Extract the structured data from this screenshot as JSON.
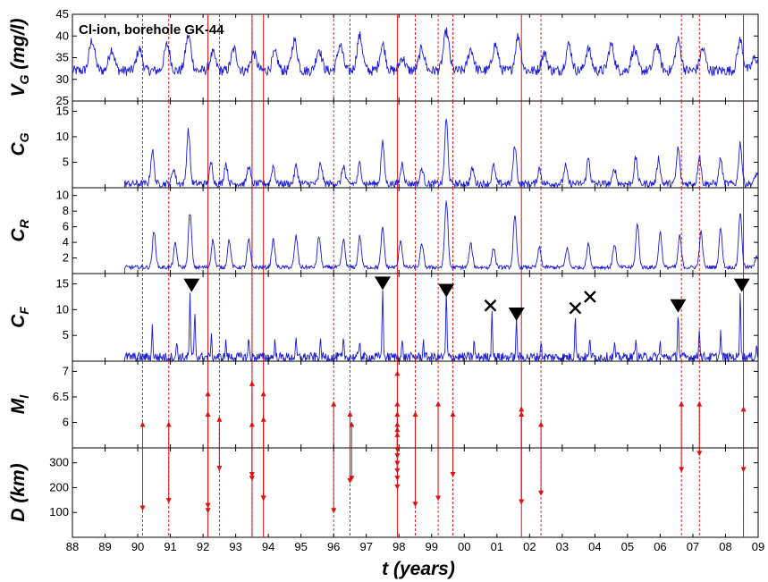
{
  "chart_data": {
    "type": "line",
    "title": "Cl-ion, borehole GK-44",
    "xlabel": "t (years)",
    "x_tick_labels": [
      "88",
      "89",
      "90",
      "91",
      "92",
      "93",
      "94",
      "95",
      "96",
      "97",
      "98",
      "99",
      "00",
      "01",
      "02",
      "03",
      "04",
      "05",
      "06",
      "07",
      "08",
      "09"
    ],
    "xlim": [
      1988,
      2009
    ],
    "colors": {
      "series": "#1a1adb",
      "events": "#e01010",
      "markers": "#000000"
    },
    "grid": false,
    "solid_event_years": [
      1992.15,
      1993.5,
      1993.85,
      1997.95,
      2001.75,
      2008.55
    ],
    "dashed_event_years": [
      1990.15,
      1990.95,
      1992.5,
      1993.5,
      1996.0,
      1996.5,
      1998.5,
      1999.2,
      1999.65,
      2002.35,
      2006.65,
      2007.2,
      2008.55
    ],
    "panels": [
      {
        "id": "vg",
        "ylabel": "V",
        "ylabel_sub": "G",
        "ylabel_unit": " (mg/l)",
        "ylim": [
          25,
          45
        ],
        "yticks": [
          "45",
          "40",
          "35",
          "30",
          "25"
        ],
        "ytick_values": [
          45,
          40,
          35,
          30,
          25
        ],
        "baseline": 32,
        "noise": 1.2,
        "start_year": 1988.0,
        "peaks": [
          [
            1988.6,
            7
          ],
          [
            1989.2,
            5
          ],
          [
            1990.05,
            5
          ],
          [
            1990.9,
            6
          ],
          [
            1991.55,
            8
          ],
          [
            1992.3,
            4
          ],
          [
            1992.95,
            5
          ],
          [
            1993.55,
            4
          ],
          [
            1994.2,
            4
          ],
          [
            1994.8,
            7
          ],
          [
            1995.55,
            5
          ],
          [
            1996.2,
            6
          ],
          [
            1996.8,
            8
          ],
          [
            1997.5,
            6
          ],
          [
            1998.1,
            3
          ],
          [
            1998.7,
            5
          ],
          [
            1999.45,
            9
          ],
          [
            2000.2,
            5
          ],
          [
            2000.95,
            6
          ],
          [
            2001.65,
            8
          ],
          [
            2002.45,
            4
          ],
          [
            2003.2,
            6
          ],
          [
            2003.8,
            5
          ],
          [
            2004.5,
            6
          ],
          [
            2005.2,
            5
          ],
          [
            2005.9,
            6
          ],
          [
            2006.55,
            7
          ],
          [
            2007.3,
            5
          ],
          [
            2008.45,
            7
          ],
          [
            2008.9,
            3
          ]
        ]
      },
      {
        "id": "cg",
        "ylabel": "C",
        "ylabel_sub": "G",
        "ylabel_unit": "",
        "ylim": [
          0,
          17
        ],
        "yticks": [
          "15",
          "10",
          "5"
        ],
        "ytick_values": [
          15,
          10,
          5
        ],
        "baseline": 0.8,
        "noise": 0.7,
        "start_year": 1989.6,
        "peaks": [
          [
            1990.45,
            6.5
          ],
          [
            1991.1,
            3
          ],
          [
            1991.55,
            10.5
          ],
          [
            1992.25,
            4
          ],
          [
            1992.7,
            4
          ],
          [
            1993.4,
            3.5
          ],
          [
            1994.15,
            3.5
          ],
          [
            1994.85,
            3.5
          ],
          [
            1995.6,
            4
          ],
          [
            1996.3,
            3.5
          ],
          [
            1996.8,
            4
          ],
          [
            1997.5,
            8
          ],
          [
            1998.1,
            4
          ],
          [
            1998.7,
            3
          ],
          [
            1999.45,
            12.5
          ],
          [
            2000.25,
            3
          ],
          [
            2000.9,
            3.5
          ],
          [
            2001.55,
            7.5
          ],
          [
            2002.3,
            3
          ],
          [
            2003.1,
            3.5
          ],
          [
            2003.8,
            5
          ],
          [
            2004.6,
            3
          ],
          [
            2005.25,
            5
          ],
          [
            2005.95,
            5
          ],
          [
            2006.55,
            7
          ],
          [
            2007.2,
            5.5
          ],
          [
            2007.85,
            5
          ],
          [
            2008.45,
            8
          ],
          [
            2008.95,
            2
          ]
        ]
      },
      {
        "id": "cr",
        "ylabel": "C",
        "ylabel_sub": "R",
        "ylabel_unit": "",
        "ylim": [
          0,
          11
        ],
        "yticks": [
          "10",
          "8",
          "6",
          "4",
          "2"
        ],
        "ytick_values": [
          10,
          8,
          6,
          4,
          2
        ],
        "baseline": 0.8,
        "noise": 0.25,
        "start_year": 1989.6,
        "peaks": [
          [
            1990.5,
            4.5
          ],
          [
            1991.15,
            3
          ],
          [
            1991.6,
            7
          ],
          [
            1992.3,
            3.5
          ],
          [
            1992.8,
            3.5
          ],
          [
            1993.4,
            3.5
          ],
          [
            1994.15,
            3.5
          ],
          [
            1994.85,
            4
          ],
          [
            1995.55,
            4
          ],
          [
            1996.3,
            3.5
          ],
          [
            1996.8,
            4
          ],
          [
            1997.5,
            5
          ],
          [
            1998.05,
            3.5
          ],
          [
            1998.7,
            3
          ],
          [
            1999.45,
            8.5
          ],
          [
            2000.2,
            3
          ],
          [
            2000.9,
            2.5
          ],
          [
            2001.55,
            6.5
          ],
          [
            2002.3,
            2.5
          ],
          [
            2003.15,
            2.5
          ],
          [
            2003.8,
            3
          ],
          [
            2004.6,
            3
          ],
          [
            2005.3,
            5.5
          ],
          [
            2006.0,
            4.5
          ],
          [
            2006.6,
            4
          ],
          [
            2007.25,
            4.5
          ],
          [
            2007.85,
            5
          ],
          [
            2008.45,
            7
          ],
          [
            2008.95,
            1.5
          ]
        ]
      },
      {
        "id": "cf",
        "ylabel": "C",
        "ylabel_sub": "F",
        "ylabel_unit": "",
        "ylim": [
          0,
          17
        ],
        "yticks": [
          "15",
          "10",
          "5"
        ],
        "ytick_values": [
          15,
          10,
          5
        ],
        "baseline": 0.8,
        "noise": 0.9,
        "start_year": 1989.6,
        "peaks": [
          [
            1990.45,
            6
          ],
          [
            1991.2,
            3
          ],
          [
            1991.6,
            12
          ],
          [
            1991.75,
            9
          ],
          [
            1992.25,
            4
          ],
          [
            1992.7,
            3
          ],
          [
            1993.4,
            3.5
          ],
          [
            1994.2,
            3
          ],
          [
            1994.85,
            3
          ],
          [
            1995.6,
            3
          ],
          [
            1996.3,
            3
          ],
          [
            1996.8,
            3.5
          ],
          [
            1997.5,
            14
          ],
          [
            1998.1,
            3
          ],
          [
            1998.75,
            3
          ],
          [
            1999.45,
            12.5
          ],
          [
            2000.3,
            3
          ],
          [
            2000.85,
            9.5
          ],
          [
            2001.6,
            7
          ],
          [
            2002.35,
            3
          ],
          [
            2003.4,
            8.5
          ],
          [
            2003.85,
            4
          ],
          [
            2004.6,
            2.5
          ],
          [
            2005.25,
            3.5
          ],
          [
            2006.0,
            3
          ],
          [
            2006.55,
            9
          ],
          [
            2007.2,
            6
          ],
          [
            2007.85,
            5
          ],
          [
            2008.45,
            13.5
          ],
          [
            2008.95,
            2
          ]
        ],
        "triangles": [
          [
            1991.65,
            14.8
          ],
          [
            1997.5,
            15.2
          ],
          [
            1999.45,
            13.8
          ],
          [
            2001.6,
            9.2
          ],
          [
            2006.55,
            10.8
          ],
          [
            2008.5,
            14.8
          ]
        ],
        "crosses": [
          [
            2000.8,
            10.8
          ],
          [
            2003.4,
            10.3
          ],
          [
            2003.85,
            12.5
          ]
        ]
      },
      {
        "id": "mi",
        "ylabel": "M",
        "ylabel_sub": "l",
        "ylabel_unit": "",
        "ylim": [
          5.5,
          7.2
        ],
        "yticks": [
          "7",
          "6.5",
          "6"
        ],
        "ytick_values": [
          7,
          6.5,
          6
        ]
      },
      {
        "id": "d",
        "ylabel": "D",
        "ylabel_sub": "",
        "ylabel_unit": " (km)",
        "ylim": [
          0,
          360
        ],
        "yticks": [
          "100",
          "200",
          "300"
        ],
        "ytick_values": [
          100,
          200,
          300
        ]
      }
    ],
    "earthquakes": [
      {
        "t": 1990.15,
        "m": 6.0,
        "d": 110
      },
      {
        "t": 1990.95,
        "m": 6.0,
        "d": 140
      },
      {
        "t": 1992.15,
        "m": 6.6,
        "d": 100
      },
      {
        "t": 1992.15,
        "m": 6.2,
        "d": 120
      },
      {
        "t": 1992.5,
        "m": 6.1,
        "d": 270
      },
      {
        "t": 1993.5,
        "m": 6.8,
        "d": 230
      },
      {
        "t": 1993.5,
        "m": 6.0,
        "d": 245
      },
      {
        "t": 1993.85,
        "m": 6.6,
        "d": 150
      },
      {
        "t": 1993.85,
        "m": 6.1,
        "d": 150
      },
      {
        "t": 1996.0,
        "m": 6.4,
        "d": 100
      },
      {
        "t": 1996.5,
        "m": 6.2,
        "d": 220
      },
      {
        "t": 1996.55,
        "m": 6.0,
        "d": 230
      },
      {
        "t": 1997.95,
        "m": 7.0,
        "d": 195
      },
      {
        "t": 1997.95,
        "m": 6.4,
        "d": 230
      },
      {
        "t": 1997.95,
        "m": 6.2,
        "d": 260
      },
      {
        "t": 1997.95,
        "m": 6.0,
        "d": 290
      },
      {
        "t": 1997.95,
        "m": 5.9,
        "d": 320
      },
      {
        "t": 1997.95,
        "m": 5.8,
        "d": 345
      },
      {
        "t": 1998.5,
        "m": 6.2,
        "d": 125
      },
      {
        "t": 1999.2,
        "m": 6.4,
        "d": 150
      },
      {
        "t": 1999.65,
        "m": 6.2,
        "d": 245
      },
      {
        "t": 2001.75,
        "m": 6.3,
        "d": 135
      },
      {
        "t": 2001.75,
        "m": 6.2,
        "d": 135
      },
      {
        "t": 2002.35,
        "m": 6.0,
        "d": 170
      },
      {
        "t": 2006.65,
        "m": 6.4,
        "d": 265
      },
      {
        "t": 2007.2,
        "m": 6.4,
        "d": 330
      },
      {
        "t": 2008.55,
        "m": 6.3,
        "d": 265
      }
    ]
  }
}
